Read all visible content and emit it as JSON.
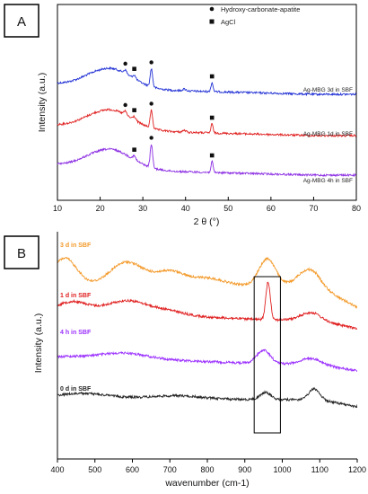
{
  "chart_data": [
    {
      "panel": "A",
      "type": "line",
      "xlabel": "2 θ (°)",
      "ylabel": "Intensity (a.u.)",
      "xlim": [
        10,
        80
      ],
      "xticks": [
        10,
        20,
        30,
        40,
        50,
        60,
        70,
        80
      ],
      "legend": {
        "placement": "top-right",
        "entries": [
          {
            "marker": "circle",
            "label": "Hydroxy-carbonate-apatite"
          },
          {
            "marker": "square",
            "label": "AgCl"
          }
        ]
      },
      "series": [
        {
          "name": "Ag-MBG 3d in SBF",
          "color": "#1f2fd4",
          "offset": 2.0,
          "peaks": [
            {
              "x": 25.9,
              "marker": "circle"
            },
            {
              "x": 28.0,
              "marker": "square"
            },
            {
              "x": 32.0,
              "marker": "circle"
            },
            {
              "x": 46.2,
              "marker": "square"
            }
          ]
        },
        {
          "name": "Ag-MBG 1d in SBF",
          "color": "#e02020",
          "offset": 1.0,
          "peaks": [
            {
              "x": 25.9,
              "marker": "circle"
            },
            {
              "x": 28.0,
              "marker": "square"
            },
            {
              "x": 32.0,
              "marker": "circle"
            },
            {
              "x": 46.2,
              "marker": "square"
            }
          ]
        },
        {
          "name": "Ag-MBG 4h in SBF",
          "color": "#8a2be2",
          "offset": 0.0,
          "peaks": [
            {
              "x": 28.0,
              "marker": "square"
            },
            {
              "x": 32.0,
              "marker": "circle"
            },
            {
              "x": 46.2,
              "marker": "square"
            }
          ]
        }
      ]
    },
    {
      "panel": "B",
      "type": "line",
      "xlabel": "wavenumber (cm-1)",
      "ylabel": "Intensity (a.u.)",
      "xlim": [
        400,
        1200
      ],
      "xticks": [
        400,
        500,
        600,
        700,
        800,
        900,
        1000,
        1100,
        1200
      ],
      "highlight_box": [
        925,
        995
      ],
      "series": [
        {
          "name": "3 d in SBF",
          "color": "#f39a2a"
        },
        {
          "name": "1 d in SBF",
          "color": "#e02020"
        },
        {
          "name": "4 h in SBF",
          "color": "#9b30ff"
        },
        {
          "name": "0 d in SBF",
          "color": "#222222"
        }
      ]
    }
  ]
}
